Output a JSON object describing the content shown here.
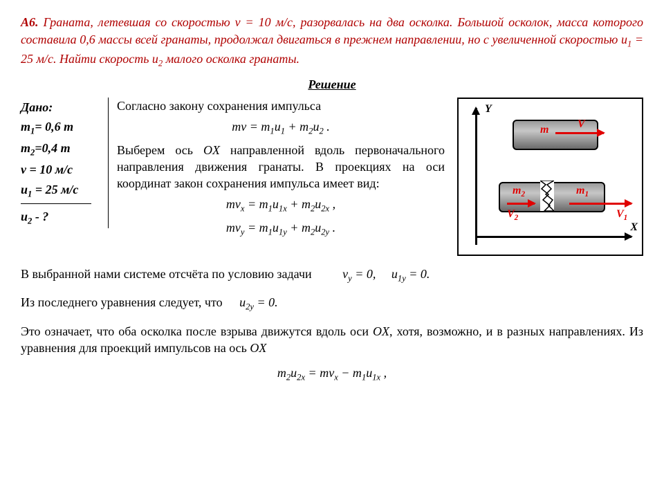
{
  "problem": {
    "id": "А6.",
    "text_html": "Граната, летевшая со скоростью v = 10 м/с, разорвалась на два осколка. Большой осколок, масса которого составила 0,6 массы всей гранаты, продолжал двигаться в прежнем направлении, но с увеличенной скоростью u<sub>1</sub> = 25 м/с. Найти скорость u<sub>2</sub> малого осколка гранаты."
  },
  "solution_title": "Решение",
  "given": {
    "title": "Дано:",
    "lines": [
      "m<sub>1</sub>= 0,6 m",
      "m<sub>2</sub>=0,4 m",
      "v = 10 м/с",
      "u<sub>1</sub> = 25 м/с"
    ],
    "find": "u<sub>2</sub> - ?"
  },
  "solution": {
    "p1": "Согласно закону сохранения импульса",
    "eq1": "mv = m<sub>1</sub>u<sub>1</sub> + m<sub>2</sub>u<sub>2</sub> .",
    "p2": "Выберем ось <i>OX</i> направленной вдоль первоначального направления движения гранаты. В проекциях на оси координат закон сохранения импульса имеет вид:",
    "eq2": "mv<sub>x</sub> = m<sub>1</sub>u<sub>1x</sub> + m<sub>2</sub>u<sub>2x</sub> ,",
    "eq3": "mv<sub>y</sub> = m<sub>1</sub>u<sub>1y</sub> + m<sub>2</sub>u<sub>2y</sub> ."
  },
  "below": {
    "l1": "В выбранной нами системе отсчёта по условию задачи",
    "l1eq": "v<sub>y</sub> = 0,&nbsp;&nbsp;&nbsp;&nbsp; u<sub>1y</sub> = 0.",
    "l2": "Из последнего уравнения следует, что",
    "l2eq": "u<sub>2y</sub> = 0.",
    "l3": "Это означает, что оба осколка после взрыва движутся вдоль оси <i>OX</i>, хотя, возможно, и в разных направлениях. Из уравнения для проекций импульсов на ось <i>OX</i>",
    "eq4": "m<sub>2</sub>u<sub>2x</sub> = mv<sub>x</sub> − m<sub>1</sub>u<sub>1x</sub> ,"
  },
  "diagram": {
    "axes": {
      "Y": "Y",
      "X": "X"
    },
    "grenade_top": {
      "m": "m",
      "V": "V"
    },
    "grenade_bottom": {
      "m1": "m<sub>1</sub>",
      "m2": "m<sub>2</sub>",
      "V1": "V<sub>1</sub>",
      "V2": "V<sub>2</sub>"
    },
    "colors": {
      "axis": "#000000",
      "arrow": "#e00000",
      "body": "#8a8a8a"
    }
  }
}
